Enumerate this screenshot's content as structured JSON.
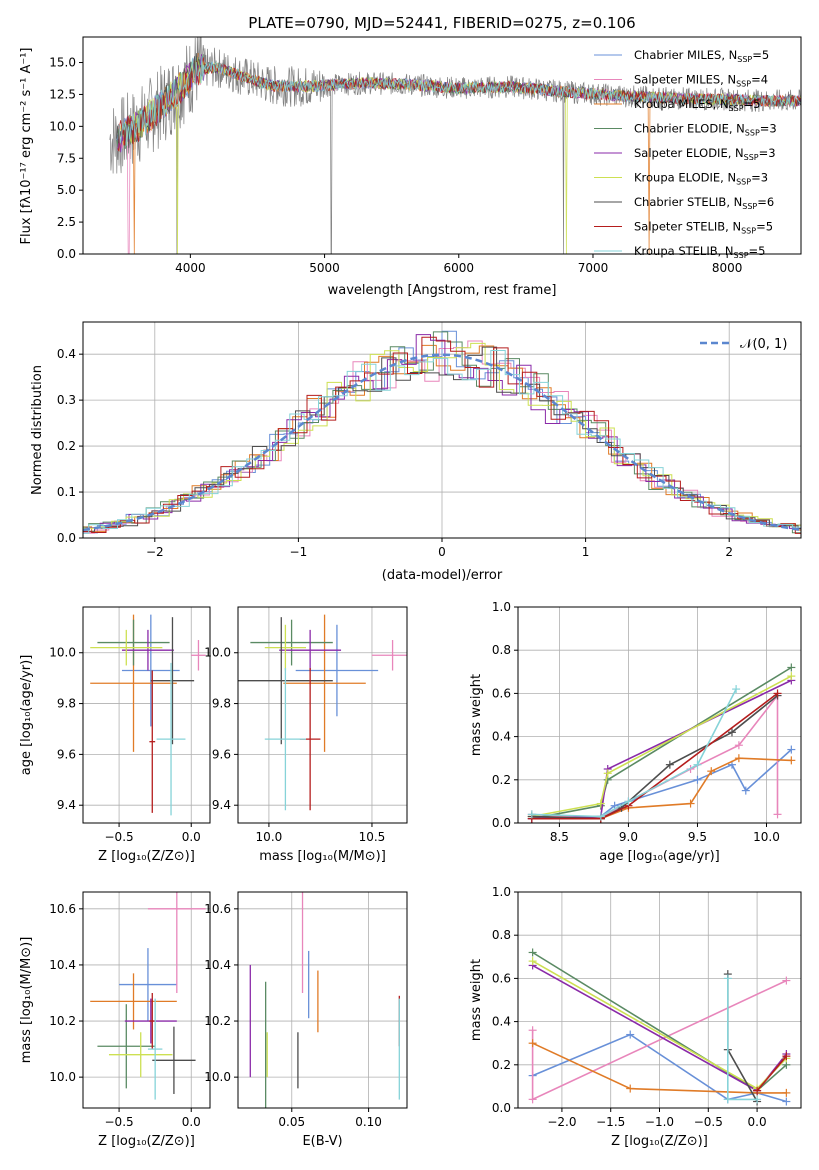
{
  "chart_data": [
    {
      "id": "spectrum",
      "type": "line",
      "title": "PLATE=0790, MJD=52441, FIBERID=0275, z=0.106",
      "xlabel": "wavelength [Angstrom, rest frame]",
      "ylabel": "Flux [fλ10⁻¹⁷ erg cm⁻² s⁻¹ A⁻¹]",
      "xlim": [
        3200,
        8550
      ],
      "ylim": [
        0,
        17
      ],
      "xticks": [
        "4000",
        "5000",
        "6000",
        "7000",
        "8000"
      ],
      "yticks": [
        "0.0",
        "2.5",
        "5.0",
        "7.5",
        "10.0",
        "12.5",
        "15.0"
      ],
      "legend_position": "right",
      "series": [
        {
          "name": "Chabrier MILES, N",
          "sub": "SSP",
          "suffix": "=5",
          "color": "#6890d8"
        },
        {
          "name": "Salpeter MILES, N",
          "sub": "SSP",
          "suffix": "=4",
          "color": "#e886bb"
        },
        {
          "name": "Kroupa MILES, N",
          "sub": "SSP",
          "suffix": "=5",
          "color": "#e07b27"
        },
        {
          "name": "Chabrier ELODIE, N",
          "sub": "SSP",
          "suffix": "=3",
          "color": "#5a8a63"
        },
        {
          "name": "Salpeter ELODIE, N",
          "sub": "SSP",
          "suffix": "=3",
          "color": "#8a2aa8"
        },
        {
          "name": "Kroupa ELODIE, N",
          "sub": "SSP",
          "suffix": "=3",
          "color": "#cde052"
        },
        {
          "name": "Chabrier STELIB, N",
          "sub": "SSP",
          "suffix": "=6",
          "color": "#4d4d4d"
        },
        {
          "name": "Salpeter STELIB, N",
          "sub": "SSP",
          "suffix": "=5",
          "color": "#b51d1d"
        },
        {
          "name": "Kroupa STELIB, N",
          "sub": "SSP",
          "suffix": "=5",
          "color": "#86d3d8"
        }
      ],
      "observed_color": "#808080",
      "continuum_points": [
        [
          3450,
          9.0
        ],
        [
          3650,
          10.3
        ],
        [
          3800,
          11.8
        ],
        [
          3950,
          13.3
        ],
        [
          4050,
          14.5
        ],
        [
          4200,
          14.6
        ],
        [
          4400,
          13.9
        ],
        [
          4600,
          13.2
        ],
        [
          4800,
          13.1
        ],
        [
          5000,
          13.2
        ],
        [
          5300,
          13.4
        ],
        [
          5600,
          13.3
        ],
        [
          6000,
          13.0
        ],
        [
          6400,
          13.1
        ],
        [
          6800,
          12.7
        ],
        [
          7200,
          12.4
        ],
        [
          7600,
          12.2
        ],
        [
          8000,
          12.1
        ],
        [
          8300,
          12.0
        ]
      ],
      "observed_range": [
        3400,
        8560
      ]
    },
    {
      "id": "residuals",
      "type": "histogram",
      "xlabel": "(data-model)/error",
      "ylabel": "Normed distribution",
      "xlim": [
        -2.5,
        2.5
      ],
      "ylim": [
        0,
        0.47
      ],
      "xticks": [
        "−2",
        "−1",
        "0",
        "1",
        "2"
      ],
      "yticks": [
        "0.0",
        "0.1",
        "0.2",
        "0.3",
        "0.4"
      ],
      "legend": "𝒩(0, 1)",
      "legend_position": "top-right",
      "bin_width": 0.1,
      "grid": true
    },
    {
      "id": "age-vs-Z",
      "type": "errorbar",
      "xlabel": "Z [log₁₀(Z/Z⊙)]",
      "ylabel": "age  [log₁₀(age/yr)]",
      "xlim": [
        -0.75,
        0.13
      ],
      "ylim": [
        9.33,
        10.18
      ],
      "xticks": [
        -0.5,
        0.0
      ],
      "xticklabels": [
        "−0.5",
        "0.0"
      ],
      "yticks": [
        9.4,
        9.6,
        9.8,
        10.0
      ],
      "yticklabels": [
        "9.4",
        "9.6",
        "9.8",
        "10.0"
      ],
      "points": [
        {
          "color": "#6890d8",
          "x": -0.28,
          "xerr": 0.2,
          "y": 9.93,
          "yerr": 0.22
        },
        {
          "color": "#e886bb",
          "x": 0.05,
          "xerr": 0.05,
          "y": 9.99,
          "yerr": 0.06
        },
        {
          "color": "#e07b27",
          "x": -0.4,
          "xerr": 0.3,
          "y": 9.88,
          "yerr": 0.27
        },
        {
          "color": "#5a8a63",
          "x": -0.4,
          "xerr": 0.25,
          "y": 10.04,
          "yerr": 0.09
        },
        {
          "color": "#8a2aa8",
          "x": -0.3,
          "xerr": 0.18,
          "y": 10.01,
          "yerr": 0.08
        },
        {
          "color": "#cde052",
          "x": -0.45,
          "xerr": 0.25,
          "y": 10.02,
          "yerr": 0.07
        },
        {
          "color": "#4d4d4d",
          "x": -0.13,
          "xerr": 0.15,
          "y": 9.89,
          "yerr": 0.25
        },
        {
          "color": "#b51d1d",
          "x": -0.27,
          "xerr": 0.02,
          "y": 9.65,
          "yerr": 0.28
        },
        {
          "color": "#86d3d8",
          "x": -0.14,
          "xerr": 0.1,
          "y": 9.66,
          "yerr": 0.3
        }
      ]
    },
    {
      "id": "age-vs-mass",
      "type": "errorbar",
      "xlabel": "mass [log₁₀(M/M⊙)]",
      "ylabel": "",
      "xlim": [
        9.85,
        10.67
      ],
      "ylim": [
        9.33,
        10.18
      ],
      "xticks": [
        10.0,
        10.5
      ],
      "xticklabels": [
        "10.0",
        "10.5"
      ],
      "yticks": [
        9.4,
        9.6,
        9.8,
        10.0
      ],
      "yticklabels": [
        "9.4",
        "9.6",
        "9.8",
        "10.0"
      ],
      "points": [
        {
          "color": "#6890d8",
          "x": 10.33,
          "xerr": 0.2,
          "y": 9.93,
          "yerr": 0.18
        },
        {
          "color": "#e886bb",
          "x": 10.6,
          "xerr": 0.1,
          "y": 9.99,
          "yerr": 0.06
        },
        {
          "color": "#e07b27",
          "x": 10.27,
          "xerr": 0.2,
          "y": 9.88,
          "yerr": 0.27
        },
        {
          "color": "#5a8a63",
          "x": 10.11,
          "xerr": 0.2,
          "y": 10.04,
          "yerr": 0.09
        },
        {
          "color": "#8a2aa8",
          "x": 10.2,
          "xerr": 0.15,
          "y": 10.01,
          "yerr": 0.08
        },
        {
          "color": "#cde052",
          "x": 10.08,
          "xerr": 0.1,
          "y": 10.02,
          "yerr": 0.09
        },
        {
          "color": "#4d4d4d",
          "x": 10.06,
          "xerr": 0.25,
          "y": 9.89,
          "yerr": 0.25
        },
        {
          "color": "#b51d1d",
          "x": 10.2,
          "xerr": 0.05,
          "y": 9.66,
          "yerr": 0.28
        },
        {
          "color": "#86d3d8",
          "x": 10.08,
          "xerr": 0.1,
          "y": 9.66,
          "yerr": 0.28
        }
      ]
    },
    {
      "id": "mass-weight-vs-age",
      "type": "line",
      "xlabel": "age  [log₁₀(age/yr)]",
      "ylabel": "mass weight",
      "xlim": [
        8.2,
        10.25
      ],
      "ylim": [
        0,
        1
      ],
      "xticks": [
        8.5,
        9.0,
        9.5,
        10.0
      ],
      "xticklabels": [
        "8.5",
        "9.0",
        "9.5",
        "10.0"
      ],
      "yticks": [
        0,
        0.2,
        0.4,
        0.6,
        0.8,
        1.0
      ],
      "yticklabels": [
        "0.0",
        "0.2",
        "0.4",
        "0.6",
        "0.8",
        "1.0"
      ],
      "series": [
        {
          "color": "#6890d8",
          "x": [
            8.3,
            8.8,
            8.9,
            9.5,
            9.75,
            9.85,
            10.18
          ],
          "y": [
            0.03,
            0.03,
            0.08,
            0.2,
            0.27,
            0.15,
            0.34
          ]
        },
        {
          "color": "#e886bb",
          "x": [
            8.3,
            8.8,
            9.0,
            9.45,
            9.8,
            10.08,
            10.08
          ],
          "y": [
            0.04,
            0.02,
            0.1,
            0.25,
            0.36,
            0.59,
            0.04
          ]
        },
        {
          "color": "#e07b27",
          "x": [
            8.3,
            8.8,
            9.0,
            9.45,
            9.6,
            9.8,
            10.18
          ],
          "y": [
            0.03,
            0.02,
            0.07,
            0.09,
            0.24,
            0.3,
            0.29
          ]
        },
        {
          "color": "#5a8a63",
          "x": [
            8.3,
            8.8,
            8.85,
            10.18
          ],
          "y": [
            0.02,
            0.08,
            0.2,
            0.72
          ]
        },
        {
          "color": "#8a2aa8",
          "x": [
            8.3,
            8.8,
            8.85,
            10.18
          ],
          "y": [
            0.02,
            0.03,
            0.25,
            0.66
          ]
        },
        {
          "color": "#cde052",
          "x": [
            8.3,
            8.8,
            8.85,
            10.18
          ],
          "y": [
            0.03,
            0.09,
            0.23,
            0.68
          ]
        },
        {
          "color": "#4d4d4d",
          "x": [
            8.3,
            8.8,
            8.95,
            9.3,
            9.75,
            10.08
          ],
          "y": [
            0.03,
            0.02,
            0.07,
            0.27,
            0.42,
            0.59
          ]
        },
        {
          "color": "#b51d1d",
          "x": [
            8.3,
            8.8,
            9.0,
            10.08
          ],
          "y": [
            0.02,
            0.02,
            0.08,
            0.6
          ]
        },
        {
          "color": "#86d3d8",
          "x": [
            8.3,
            8.8,
            9.0,
            9.5,
            9.78
          ],
          "y": [
            0.04,
            0.03,
            0.1,
            0.27,
            0.62
          ]
        }
      ]
    },
    {
      "id": "mass-vs-Z",
      "type": "errorbar",
      "xlabel": "Z [log₁₀(Z/Z⊙)]",
      "ylabel": "mass [log₁₀(M/M⊙)]",
      "xlim": [
        -0.75,
        0.13
      ],
      "ylim": [
        9.89,
        10.66
      ],
      "xticks": [
        -0.5,
        0.0
      ],
      "xticklabels": [
        "−0.5",
        "0.0"
      ],
      "yticks": [
        10.0,
        10.2,
        10.4,
        10.6
      ],
      "yticklabels": [
        "10.0",
        "10.2",
        "10.4",
        "10.6"
      ],
      "points": [
        {
          "color": "#6890d8",
          "x": -0.3,
          "xerr": 0.2,
          "y": 10.33,
          "yerr": 0.13
        },
        {
          "color": "#e886bb",
          "x": -0.1,
          "xerr": 0.2,
          "y": 10.6,
          "yerr": 0.3
        },
        {
          "color": "#e07b27",
          "x": -0.4,
          "xerr": 0.3,
          "y": 10.27,
          "yerr": 0.1
        },
        {
          "color": "#5a8a63",
          "x": -0.45,
          "xerr": 0.2,
          "y": 10.11,
          "yerr": 0.15
        },
        {
          "color": "#8a2aa8",
          "x": -0.28,
          "xerr": 0.18,
          "y": 10.2,
          "yerr": 0.08
        },
        {
          "color": "#cde052",
          "x": -0.35,
          "xerr": 0.22,
          "y": 10.08,
          "yerr": 0.08
        },
        {
          "color": "#4d4d4d",
          "x": -0.12,
          "xerr": 0.15,
          "y": 10.06,
          "yerr": 0.12
        },
        {
          "color": "#b51d1d",
          "x": -0.27,
          "xerr": 0.02,
          "y": 10.2,
          "yerr": 0.1
        },
        {
          "color": "#86d3d8",
          "x": -0.25,
          "xerr": 0.05,
          "y": 10.1,
          "yerr": 0.18
        }
      ]
    },
    {
      "id": "mass-vs-EBV",
      "type": "errorbar",
      "xlabel": "E(B-V)",
      "ylabel": "",
      "xlim": [
        0.015,
        0.125
      ],
      "ylim": [
        9.89,
        10.66
      ],
      "xticks": [
        0.05,
        0.1
      ],
      "xticklabels": [
        "0.05",
        "0.10"
      ],
      "yticks": [
        10.0,
        10.2,
        10.4,
        10.6
      ],
      "yticklabels": [
        "10.0",
        "10.2",
        "10.4",
        "10.6"
      ],
      "points": [
        {
          "color": "#6890d8",
          "x": 0.061,
          "xerr": 0,
          "y": 10.33,
          "yerr": 0.12
        },
        {
          "color": "#e886bb",
          "x": 0.057,
          "xerr": 0,
          "y": 10.6,
          "yerr": 0.3
        },
        {
          "color": "#e07b27",
          "x": 0.067,
          "xerr": 0,
          "y": 10.27,
          "yerr": 0.11
        },
        {
          "color": "#5a8a63",
          "x": 0.033,
          "xerr": 0,
          "y": 10.11,
          "yerr": 0.23
        },
        {
          "color": "#8a2aa8",
          "x": 0.023,
          "xerr": 0,
          "y": 10.2,
          "yerr": 0.2
        },
        {
          "color": "#cde052",
          "x": 0.034,
          "xerr": 0,
          "y": 10.08,
          "yerr": 0.08
        },
        {
          "color": "#4d4d4d",
          "x": 0.054,
          "xerr": 0,
          "y": 10.06,
          "yerr": 0.1
        },
        {
          "color": "#b51d1d",
          "x": 0.12,
          "xerr": 0,
          "y": 10.2,
          "yerr": 0.09
        },
        {
          "color": "#86d3d8",
          "x": 0.12,
          "xerr": 0,
          "y": 10.1,
          "yerr": 0.18
        }
      ]
    },
    {
      "id": "mass-weight-vs-Z",
      "type": "line",
      "xlabel": "Z [log₁₀(Z/Z⊙)]",
      "ylabel": "mass weight",
      "xlim": [
        -2.45,
        0.45
      ],
      "ylim": [
        0,
        1
      ],
      "xticks": [
        -2.0,
        -1.5,
        -1.0,
        -0.5,
        0.0
      ],
      "xticklabels": [
        "−2.0",
        "−1.5",
        "−1.0",
        "−0.5",
        "0.0"
      ],
      "yticks": [
        0,
        0.2,
        0.4,
        0.6,
        0.8,
        1.0
      ],
      "yticklabels": [
        "0.0",
        "0.2",
        "0.4",
        "0.6",
        "0.8",
        "1.0"
      ],
      "series": [
        {
          "color": "#6890d8",
          "x": [
            -2.3,
            -1.3,
            -0.3,
            0.0,
            0.3
          ],
          "y": [
            0.15,
            0.34,
            0.04,
            0.07,
            0.03
          ]
        },
        {
          "color": "#e886bb",
          "x": [
            -2.3,
            -2.3,
            0.3
          ],
          "y": [
            0.36,
            0.04,
            0.59
          ]
        },
        {
          "color": "#e07b27",
          "x": [
            -2.3,
            -1.3,
            0.0,
            0.3
          ],
          "y": [
            0.3,
            0.09,
            0.07,
            0.07
          ]
        },
        {
          "color": "#5a8a63",
          "x": [
            -2.3,
            0.0,
            0.3
          ],
          "y": [
            0.72,
            0.08,
            0.2
          ]
        },
        {
          "color": "#8a2aa8",
          "x": [
            -2.3,
            0.0,
            0.3
          ],
          "y": [
            0.66,
            0.08,
            0.25
          ]
        },
        {
          "color": "#cde052",
          "x": [
            -2.3,
            0.0,
            0.3
          ],
          "y": [
            0.68,
            0.09,
            0.23
          ]
        },
        {
          "color": "#4d4d4d",
          "x": [
            -0.3,
            -0.3,
            0.0
          ],
          "y": [
            0.62,
            0.27,
            0.03
          ]
        },
        {
          "color": "#b51d1d",
          "x": [
            0.0,
            0.3
          ],
          "y": [
            0.08,
            0.24
          ]
        },
        {
          "color": "#86d3d8",
          "x": [
            -0.3,
            -0.3,
            0.0
          ],
          "y": [
            0.6,
            0.04,
            0.04
          ]
        }
      ]
    }
  ]
}
